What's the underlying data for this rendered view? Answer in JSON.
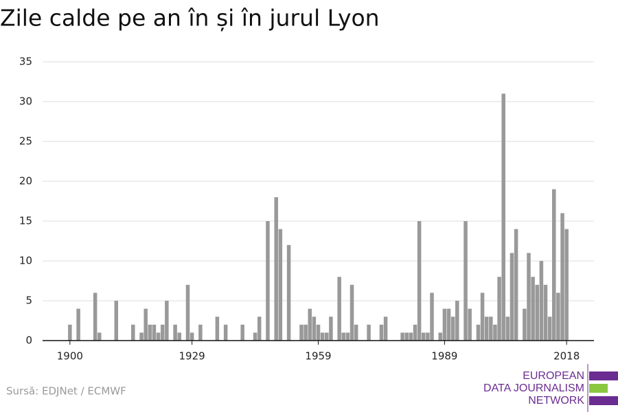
{
  "chart_data": {
    "type": "bar",
    "title": "Zile calde pe an în și în jurul Lyon",
    "source": "Sursă: EDJNet / ECMWF",
    "logo": [
      "EUROPEAN",
      "DATA JOURNALISM",
      "NETWORK"
    ],
    "color": "#999999",
    "grid": true,
    "x": [
      1900,
      1901,
      1902,
      1903,
      1904,
      1905,
      1906,
      1907,
      1908,
      1909,
      1910,
      1911,
      1912,
      1913,
      1914,
      1915,
      1916,
      1917,
      1918,
      1919,
      1920,
      1921,
      1922,
      1923,
      1924,
      1925,
      1926,
      1927,
      1928,
      1929,
      1930,
      1931,
      1932,
      1933,
      1934,
      1935,
      1936,
      1937,
      1938,
      1939,
      1940,
      1941,
      1942,
      1943,
      1944,
      1945,
      1946,
      1947,
      1948,
      1949,
      1950,
      1951,
      1952,
      1953,
      1954,
      1955,
      1956,
      1957,
      1958,
      1959,
      1960,
      1961,
      1962,
      1963,
      1964,
      1965,
      1966,
      1967,
      1968,
      1969,
      1970,
      1971,
      1972,
      1973,
      1974,
      1975,
      1976,
      1977,
      1978,
      1979,
      1980,
      1981,
      1982,
      1983,
      1984,
      1985,
      1986,
      1987,
      1988,
      1989,
      1990,
      1991,
      1992,
      1993,
      1994,
      1995,
      1996,
      1997,
      1998,
      1999,
      2000,
      2001,
      2002,
      2003,
      2004,
      2005,
      2006,
      2007,
      2008,
      2009,
      2010,
      2011,
      2012,
      2013,
      2014,
      2015,
      2016,
      2017,
      2018
    ],
    "values": [
      2,
      0,
      4,
      0,
      0,
      0,
      6,
      1,
      0,
      0,
      0,
      5,
      0,
      0,
      0,
      2,
      0,
      1,
      4,
      2,
      2,
      1,
      2,
      5,
      0,
      2,
      1,
      0,
      7,
      1,
      0,
      2,
      0,
      0,
      0,
      3,
      0,
      2,
      0,
      0,
      0,
      2,
      0,
      0,
      1,
      3,
      0,
      15,
      0,
      18,
      14,
      0,
      12,
      0,
      0,
      2,
      2,
      4,
      3,
      2,
      1,
      1,
      3,
      0,
      8,
      1,
      1,
      7,
      2,
      0,
      0,
      2,
      0,
      0,
      2,
      3,
      0,
      0,
      0,
      1,
      1,
      1,
      2,
      15,
      1,
      1,
      6,
      0,
      1,
      4,
      4,
      3,
      5,
      0,
      15,
      4,
      0,
      2,
      6,
      3,
      3,
      2,
      8,
      31,
      3,
      11,
      14,
      0,
      4,
      11,
      8,
      7,
      10,
      7,
      3,
      19,
      6,
      16,
      14
    ],
    "xlim": [
      1893.5,
      2024.5
    ],
    "xticks": [
      1900,
      1929,
      1959,
      1989,
      2018
    ],
    "ylim": [
      0,
      35
    ],
    "yticks": [
      0,
      5,
      10,
      15,
      20,
      25,
      30,
      35
    ]
  }
}
